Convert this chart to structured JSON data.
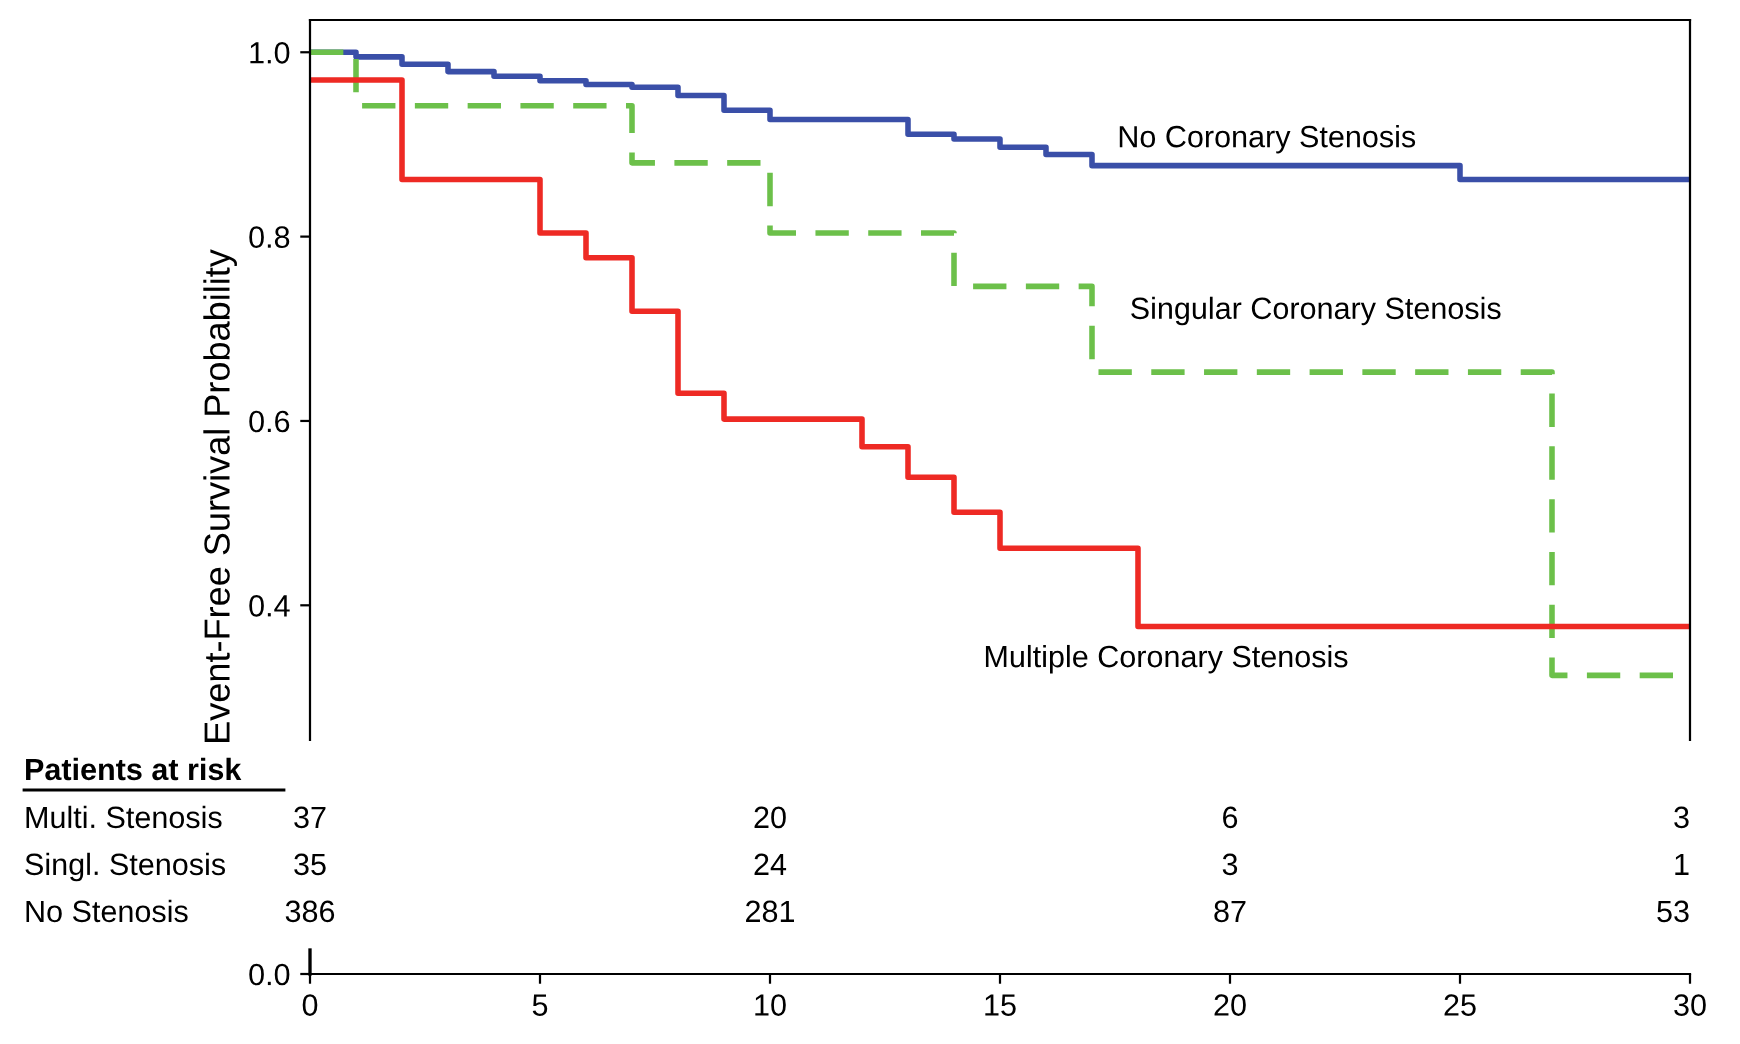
{
  "chart_data": {
    "type": "step",
    "ylabel": "Event-Free Survival Probability",
    "xlim": [
      0,
      30
    ],
    "xticks": [
      0,
      5,
      10,
      15,
      20,
      25,
      30
    ],
    "ylim": [
      0,
      1.035
    ],
    "yticks": [
      {
        "value": 0,
        "label": "0.0"
      },
      {
        "value": 0.4,
        "label": "0.4"
      },
      {
        "value": 0.6,
        "label": "0.6"
      },
      {
        "value": 0.8,
        "label": "0.8"
      },
      {
        "value": 1.0,
        "label": "1.0"
      }
    ],
    "legend": false,
    "grid": false,
    "series": [
      {
        "name": "No Coronary Stenosis",
        "color": "#3a4fa8",
        "line_style": "solid",
        "x": [
          0,
          1,
          2,
          3,
          4,
          5,
          6,
          7,
          8,
          9,
          10,
          13,
          14,
          15,
          16,
          17,
          25,
          30
        ],
        "values": [
          1.0,
          0.995,
          0.987,
          0.979,
          0.974,
          0.969,
          0.965,
          0.962,
          0.953,
          0.937,
          0.927,
          0.911,
          0.906,
          0.897,
          0.889,
          0.877,
          0.862,
          0.862
        ]
      },
      {
        "name": "Singular Coronary Stenosis",
        "color": "#6cc04a",
        "line_style": "dashed",
        "x": [
          0,
          1,
          7,
          10,
          14,
          17,
          27,
          30
        ],
        "values": [
          1.0,
          0.942,
          0.88,
          0.804,
          0.746,
          0.653,
          0.324,
          0.324
        ]
      },
      {
        "name": "Multiple Coronary Stenosis",
        "color": "#ee2a24",
        "line_style": "solid",
        "x": [
          0,
          2,
          5,
          6,
          7,
          8,
          9,
          12,
          13,
          14,
          15,
          18,
          30
        ],
        "values": [
          0.97,
          0.862,
          0.804,
          0.777,
          0.719,
          0.63,
          0.602,
          0.572,
          0.539,
          0.501,
          0.462,
          0.377,
          0.377
        ]
      }
    ],
    "annotations": [
      "Patients at risk",
      "Multi. Stenosis",
      "37",
      "20",
      "6",
      "3",
      "Singl. Stenosis",
      "35",
      "24",
      "3",
      "1",
      "No Stenosis",
      "386",
      "281",
      "87",
      "53"
    ]
  }
}
